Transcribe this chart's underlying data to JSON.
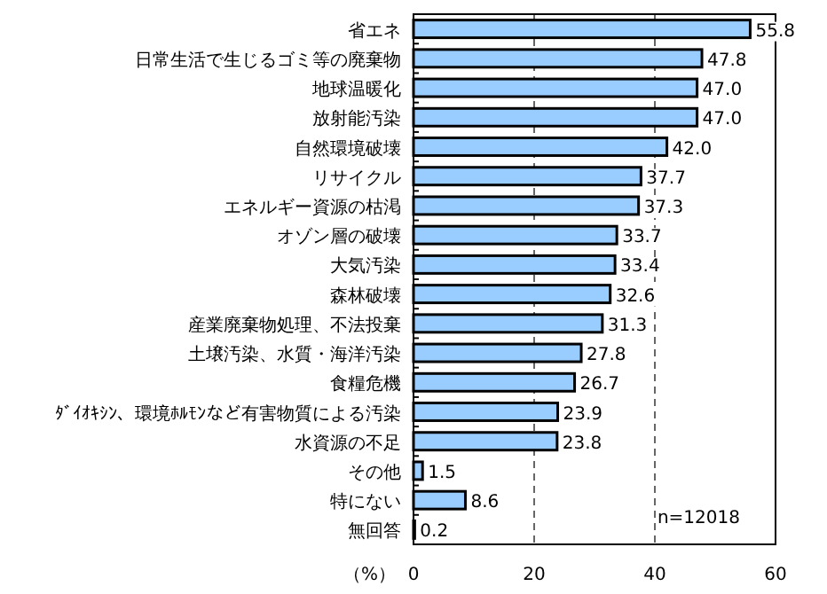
{
  "chart_data": {
    "type": "bar",
    "orientation": "horizontal",
    "xlabel": "（%）",
    "categories": [
      "省エネ",
      "日常生活で生じるゴミ等の廃棄物",
      "地球温暖化",
      "放射能汚染",
      "自然環境破壊",
      "リサイクル",
      "エネルギー資源の枯渇",
      "オゾン層の破壊",
      "大気汚染",
      "森林破壊",
      "産業廃棄物処理、不法投棄",
      "土壌汚染、水質・海洋汚染",
      "食糧危機",
      "ﾀﾞｲｵｷｼﾝ、環境ﾎﾙﾓﾝなど有害物質による汚染",
      "水資源の不足",
      "その他",
      "特にない",
      "無回答"
    ],
    "series": [
      {
        "color": "#99ccff",
        "values": [
          55.8,
          47.8,
          47.0,
          47.0,
          42.0,
          37.7,
          37.3,
          33.7,
          33.4,
          32.6,
          31.3,
          27.8,
          26.7,
          23.9,
          23.8,
          1.5,
          8.6,
          0.2
        ]
      }
    ],
    "value_labels": [
      "55.8",
      "47.8",
      "47.0",
      "47.0",
      "42.0",
      "37.7",
      "37.3",
      "33.7",
      "33.4",
      "32.6",
      "31.3",
      "27.8",
      "26.7",
      "23.9",
      "23.8",
      "1.5",
      "8.6",
      "0.2"
    ],
    "xlim": [
      0,
      60
    ],
    "xticks": [
      0,
      20,
      40,
      60
    ],
    "grid": "x",
    "annotations": [
      "n=12018"
    ]
  }
}
